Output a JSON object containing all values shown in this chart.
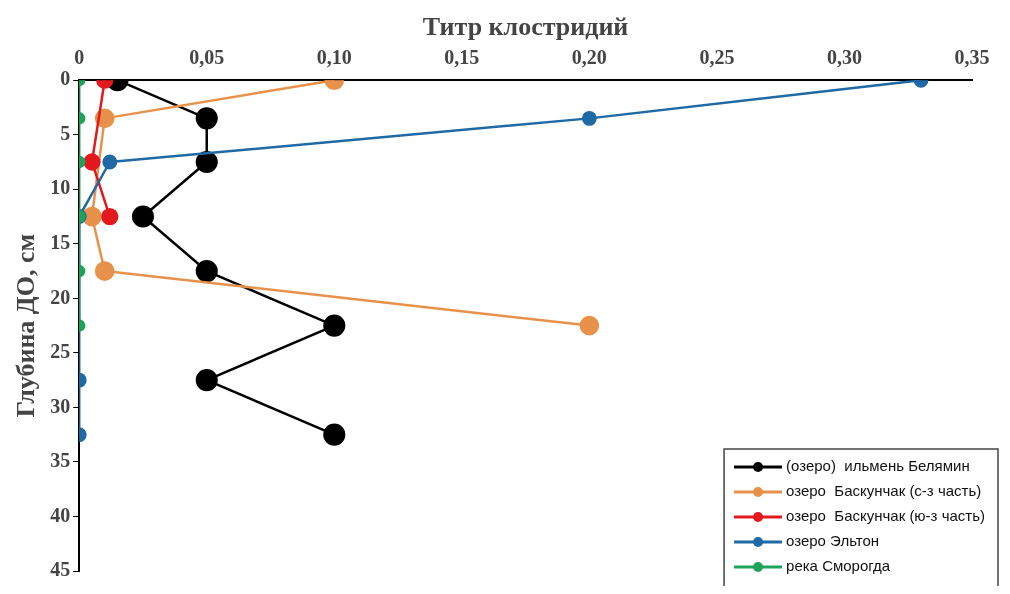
{
  "chart_data": {
    "type": "line",
    "xlabel": "Титр клостридий",
    "ylabel": "Глубина ДО, см",
    "xlim": [
      0,
      0.35
    ],
    "xticks": [
      0,
      {
        "value": 0.05,
        "label": "0,05"
      },
      {
        "value": 0.1,
        "label": "0,10"
      },
      {
        "value": 0.15,
        "label": "0,15"
      },
      {
        "value": 0.2,
        "label": "0,20"
      },
      {
        "value": 0.25,
        "label": "0,25"
      },
      {
        "value": 0.3,
        "label": "0,30"
      },
      {
        "value": 0.35,
        "label": "0,35"
      }
    ],
    "ylim": [
      45,
      0
    ],
    "yticks": [
      0,
      5,
      10,
      15,
      20,
      25,
      30,
      35,
      40,
      45
    ],
    "grid": false,
    "legend": "bottom right",
    "marker": "circle",
    "line_style": "solid",
    "series": [
      {
        "name": "(озеро)  ильмень Белямин",
        "color": "#000000",
        "x": [
          0.015,
          0.05,
          0.05,
          0.025,
          0.05,
          0.1,
          0.05,
          0.1
        ],
        "values": [
          0,
          3.5,
          7.5,
          12.5,
          17.5,
          22.5,
          27.5,
          32.5
        ]
      },
      {
        "name": "озеро  Баскунчак (с-з часть)",
        "color": "#e8914a",
        "x": [
          0.1,
          0.01,
          0.005,
          0.01,
          0.2
        ],
        "values": [
          0,
          3.5,
          12.5,
          17.5,
          22.5
        ]
      },
      {
        "name": "озеро  Баскунчак (ю-з часть)",
        "color": "#e3191e",
        "x": [
          0.01,
          0.005,
          0.012
        ],
        "values": [
          0,
          7.5,
          12.5
        ]
      },
      {
        "name": "озеро Эльтон",
        "color": "#1f6aa5",
        "x": [
          0.33,
          0.2,
          0.012,
          0,
          0,
          0
        ],
        "values": [
          0,
          3.5,
          7.5,
          12.5,
          27.5,
          32.5
        ]
      },
      {
        "name": "река Сморогда",
        "color": "#1fa35a",
        "x": [
          0,
          0,
          0,
          0,
          0,
          0
        ],
        "values": [
          0,
          3.5,
          7.5,
          12.5,
          17.5,
          22.5
        ]
      }
    ]
  }
}
